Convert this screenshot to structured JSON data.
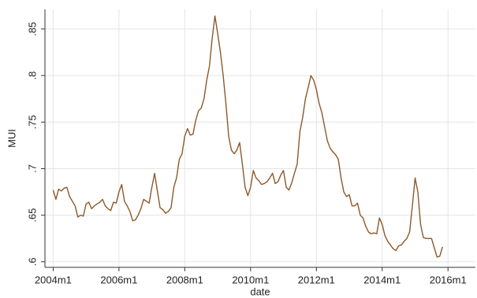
{
  "chart_data": {
    "type": "line",
    "xlabel": "date",
    "ylabel": "MUI",
    "color": "#8b5a2b",
    "grid": true,
    "x": [
      "2004m1",
      "2004m2",
      "2004m3",
      "2004m4",
      "2004m5",
      "2004m6",
      "2004m7",
      "2004m8",
      "2004m9",
      "2004m10",
      "2004m11",
      "2004m12",
      "2005m1",
      "2005m2",
      "2005m3",
      "2005m4",
      "2005m5",
      "2005m6",
      "2005m7",
      "2005m8",
      "2005m9",
      "2005m10",
      "2005m11",
      "2005m12",
      "2006m1",
      "2006m2",
      "2006m3",
      "2006m4",
      "2006m5",
      "2006m6",
      "2006m7",
      "2006m8",
      "2006m9",
      "2006m10",
      "2006m11",
      "2006m12",
      "2007m1",
      "2007m2",
      "2007m3",
      "2007m4",
      "2007m5",
      "2007m6",
      "2007m7",
      "2007m8",
      "2007m9",
      "2007m10",
      "2007m11",
      "2007m12",
      "2008m1",
      "2008m2",
      "2008m3",
      "2008m4",
      "2008m5",
      "2008m6",
      "2008m7",
      "2008m8",
      "2008m9",
      "2008m10",
      "2008m11",
      "2008m12",
      "2009m1",
      "2009m2",
      "2009m3",
      "2009m4",
      "2009m5",
      "2009m6",
      "2009m7",
      "2009m8",
      "2009m9",
      "2009m10",
      "2009m11",
      "2009m12",
      "2010m1",
      "2010m2",
      "2010m3",
      "2010m4",
      "2010m5",
      "2010m6",
      "2010m7",
      "2010m8",
      "2010m9",
      "2010m10",
      "2010m11",
      "2010m12",
      "2011m1",
      "2011m2",
      "2011m3",
      "2011m4",
      "2011m5",
      "2011m6",
      "2011m7",
      "2011m8",
      "2011m9",
      "2011m10",
      "2011m11",
      "2011m12",
      "2012m1",
      "2012m2",
      "2012m3",
      "2012m4",
      "2012m5",
      "2012m6",
      "2012m7",
      "2012m8",
      "2012m9",
      "2012m10",
      "2012m11",
      "2012m12",
      "2013m1",
      "2013m2",
      "2013m3",
      "2013m4",
      "2013m5",
      "2013m6",
      "2013m7",
      "2013m8",
      "2013m9",
      "2013m10",
      "2013m11",
      "2013m12",
      "2014m1",
      "2014m2",
      "2014m3",
      "2014m4",
      "2014m5",
      "2014m6",
      "2014m7",
      "2014m8",
      "2014m9",
      "2014m10",
      "2014m11",
      "2014m12",
      "2015m1",
      "2015m2",
      "2015m3",
      "2015m4",
      "2015m5",
      "2015m6",
      "2015m7",
      "2015m8",
      "2015m9",
      "2015m10",
      "2015m11"
    ],
    "values": [
      0.677,
      0.667,
      0.678,
      0.676,
      0.679,
      0.68,
      0.67,
      0.665,
      0.66,
      0.648,
      0.65,
      0.649,
      0.662,
      0.664,
      0.657,
      0.66,
      0.662,
      0.664,
      0.667,
      0.66,
      0.657,
      0.655,
      0.664,
      0.663,
      0.675,
      0.683,
      0.665,
      0.66,
      0.654,
      0.644,
      0.645,
      0.65,
      0.657,
      0.667,
      0.665,
      0.663,
      0.68,
      0.695,
      0.676,
      0.658,
      0.656,
      0.652,
      0.654,
      0.658,
      0.68,
      0.69,
      0.71,
      0.716,
      0.735,
      0.743,
      0.736,
      0.737,
      0.752,
      0.762,
      0.765,
      0.775,
      0.795,
      0.81,
      0.84,
      0.864,
      0.845,
      0.825,
      0.8,
      0.77,
      0.735,
      0.72,
      0.716,
      0.72,
      0.728,
      0.705,
      0.68,
      0.671,
      0.68,
      0.698,
      0.69,
      0.687,
      0.683,
      0.684,
      0.686,
      0.69,
      0.695,
      0.684,
      0.686,
      0.693,
      0.698,
      0.68,
      0.677,
      0.685,
      0.695,
      0.705,
      0.74,
      0.755,
      0.775,
      0.787,
      0.8,
      0.795,
      0.785,
      0.77,
      0.76,
      0.745,
      0.73,
      0.722,
      0.718,
      0.715,
      0.71,
      0.69,
      0.675,
      0.67,
      0.672,
      0.66,
      0.66,
      0.663,
      0.65,
      0.647,
      0.638,
      0.632,
      0.63,
      0.631,
      0.63,
      0.647,
      0.64,
      0.628,
      0.622,
      0.618,
      0.614,
      0.612,
      0.617,
      0.618,
      0.622,
      0.625,
      0.632,
      0.66,
      0.69,
      0.675,
      0.64,
      0.626,
      0.625,
      0.625,
      0.625,
      0.615,
      0.605,
      0.606,
      0.616
    ],
    "xlim": [
      "2003m10",
      "2016m11"
    ],
    "xticks": [
      "2004m1",
      "2006m1",
      "2008m1",
      "2010m1",
      "2012m1",
      "2014m1",
      "2016m1"
    ],
    "ylim": [
      0.594,
      0.871
    ],
    "yticks": [
      {
        "value": 0.6,
        "label": ".6"
      },
      {
        "value": 0.65,
        "label": ".65"
      },
      {
        "value": 0.7,
        "label": ".7"
      },
      {
        "value": 0.75,
        "label": ".75"
      },
      {
        "value": 0.8,
        "label": ".8"
      },
      {
        "value": 0.85,
        "label": ".85"
      }
    ]
  }
}
